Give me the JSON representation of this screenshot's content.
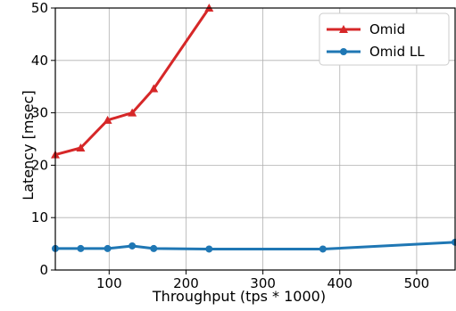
{
  "chart_data": {
    "type": "line",
    "title": "",
    "xlabel": "Throughput (tps * 1000)",
    "ylabel": "Latency [msec]",
    "xlim": [
      30,
      550
    ],
    "ylim": [
      0,
      50
    ],
    "xticks": [
      100,
      200,
      300,
      400,
      500
    ],
    "yticks": [
      0,
      10,
      20,
      30,
      40,
      50
    ],
    "grid": true,
    "legend_position": "top-right",
    "series": [
      {
        "name": "Omid",
        "color": "#d62728",
        "marker": "triangle",
        "x": [
          30,
          63,
          98,
          130,
          158,
          230
        ],
        "y": [
          22,
          23.3,
          28.6,
          30,
          34.6,
          50
        ]
      },
      {
        "name": "Omid LL",
        "color": "#1f77b4",
        "marker": "circle",
        "x": [
          30,
          63,
          98,
          130,
          158,
          230,
          378,
          550
        ],
        "y": [
          4.1,
          4.1,
          4.1,
          4.6,
          4.1,
          4.0,
          4.0,
          5.3
        ]
      }
    ]
  }
}
